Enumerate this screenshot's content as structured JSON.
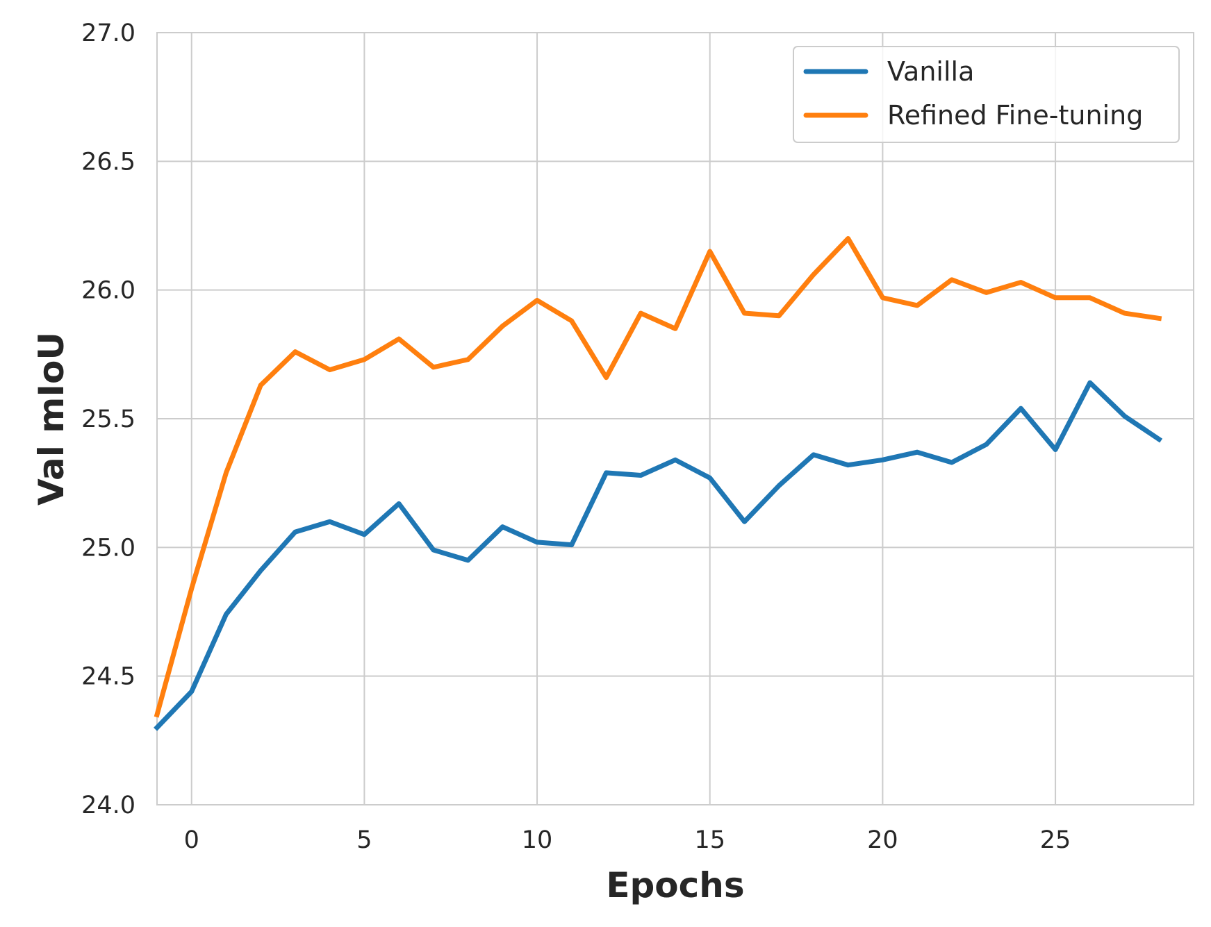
{
  "chart_data": {
    "type": "line",
    "xlabel": "Epochs",
    "ylabel": "Val mIoU",
    "xlim": [
      -1,
      29
    ],
    "ylim": [
      24.0,
      27.0
    ],
    "x_ticks": [
      0,
      5,
      10,
      15,
      20,
      25
    ],
    "x_tick_labels": [
      "0",
      "5",
      "10",
      "15",
      "20",
      "25"
    ],
    "y_ticks": [
      24.0,
      24.5,
      25.0,
      25.5,
      26.0,
      26.5,
      27.0
    ],
    "y_tick_labels": [
      "24.0",
      "24.5",
      "25.0",
      "25.5",
      "26.0",
      "26.5",
      "27.0"
    ],
    "grid": true,
    "legend": "top-right",
    "x": [
      -1,
      0,
      1,
      2,
      3,
      4,
      5,
      6,
      7,
      8,
      9,
      10,
      11,
      12,
      13,
      14,
      15,
      16,
      17,
      18,
      19,
      20,
      21,
      22,
      23,
      24,
      25,
      26,
      27,
      28
    ],
    "series": [
      {
        "name": "Vanilla",
        "color": "#1f77b4",
        "values": [
          24.3,
          24.44,
          24.74,
          24.91,
          25.06,
          25.1,
          25.05,
          25.17,
          24.99,
          24.95,
          25.08,
          25.02,
          25.01,
          25.29,
          25.28,
          25.34,
          25.27,
          25.1,
          25.24,
          25.36,
          25.32,
          25.34,
          25.37,
          25.33,
          25.4,
          25.54,
          25.38,
          25.64,
          25.51,
          25.42
        ]
      },
      {
        "name": "Refined Fine-tuning",
        "color": "#ff7f0e",
        "values": [
          24.35,
          24.84,
          25.29,
          25.63,
          25.76,
          25.69,
          25.73,
          25.81,
          25.7,
          25.73,
          25.86,
          25.96,
          25.88,
          25.66,
          25.91,
          25.85,
          26.15,
          25.91,
          25.9,
          26.06,
          26.2,
          25.97,
          25.94,
          26.04,
          25.99,
          26.03,
          25.97,
          25.97,
          25.91,
          25.89
        ]
      }
    ]
  }
}
